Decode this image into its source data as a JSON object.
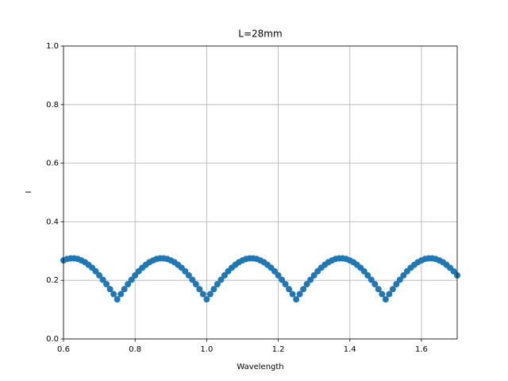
{
  "chart_data": {
    "type": "line",
    "title": "L=28mm",
    "x_label": "Wavelength",
    "y_label": "I",
    "color": "#1f77b4",
    "grid": true,
    "markers": true,
    "x": [
      0.6,
      0.61,
      0.62,
      0.63,
      0.64,
      0.65,
      0.66,
      0.67,
      0.68,
      0.69,
      0.7,
      0.71,
      0.72,
      0.73,
      0.74,
      0.75,
      0.76,
      0.77,
      0.78,
      0.79,
      0.8,
      0.81,
      0.82,
      0.83,
      0.84,
      0.85,
      0.86,
      0.87,
      0.88,
      0.89,
      0.9,
      0.91,
      0.92,
      0.93,
      0.94,
      0.95,
      0.96,
      0.97,
      0.98,
      0.99,
      1.0,
      1.01,
      1.02,
      1.03,
      1.04,
      1.05,
      1.06,
      1.07,
      1.08,
      1.09,
      1.1,
      1.11,
      1.12,
      1.13,
      1.14,
      1.15,
      1.16,
      1.17,
      1.18,
      1.19,
      1.2,
      1.21,
      1.22,
      1.23,
      1.24,
      1.25,
      1.26,
      1.27,
      1.28,
      1.29,
      1.3,
      1.31,
      1.32,
      1.33,
      1.34,
      1.35,
      1.36,
      1.37,
      1.38,
      1.39,
      1.4,
      1.41,
      1.42,
      1.43,
      1.44,
      1.45,
      1.46,
      1.47,
      1.48,
      1.49,
      1.5,
      1.51,
      1.52,
      1.53,
      1.54,
      1.55,
      1.56,
      1.57,
      1.58,
      1.59,
      1.6,
      1.61,
      1.62,
      1.63,
      1.64,
      1.65,
      1.66,
      1.67,
      1.68,
      1.69,
      1.7
    ],
    "values": [
      0.268,
      0.273,
      0.275,
      0.275,
      0.273,
      0.268,
      0.262,
      0.253,
      0.243,
      0.231,
      0.217,
      0.202,
      0.187,
      0.17,
      0.153,
      0.135,
      0.153,
      0.17,
      0.187,
      0.202,
      0.217,
      0.231,
      0.243,
      0.253,
      0.262,
      0.268,
      0.273,
      0.275,
      0.275,
      0.273,
      0.268,
      0.262,
      0.253,
      0.243,
      0.231,
      0.217,
      0.202,
      0.187,
      0.17,
      0.153,
      0.135,
      0.153,
      0.17,
      0.187,
      0.202,
      0.217,
      0.231,
      0.243,
      0.253,
      0.262,
      0.268,
      0.273,
      0.275,
      0.275,
      0.273,
      0.268,
      0.262,
      0.253,
      0.243,
      0.231,
      0.217,
      0.202,
      0.187,
      0.17,
      0.153,
      0.135,
      0.153,
      0.17,
      0.187,
      0.202,
      0.217,
      0.231,
      0.243,
      0.253,
      0.262,
      0.268,
      0.273,
      0.275,
      0.275,
      0.273,
      0.268,
      0.262,
      0.253,
      0.243,
      0.231,
      0.217,
      0.202,
      0.187,
      0.17,
      0.153,
      0.135,
      0.153,
      0.17,
      0.187,
      0.202,
      0.217,
      0.231,
      0.243,
      0.253,
      0.262,
      0.268,
      0.273,
      0.275,
      0.275,
      0.273,
      0.268,
      0.262,
      0.253,
      0.243,
      0.231,
      0.217
    ],
    "xlim": [
      0.6,
      1.7
    ],
    "xticks": [
      0.6,
      0.8,
      {
        "value": 1.0,
        "label": "1.0"
      },
      1.2,
      1.4,
      1.6
    ],
    "ylim": [
      0,
      1
    ],
    "yticks": [
      {
        "value": 0,
        "label": "0.0"
      },
      0.2,
      0.4,
      0.6,
      0.8,
      {
        "value": 1,
        "label": "1.0"
      }
    ]
  }
}
